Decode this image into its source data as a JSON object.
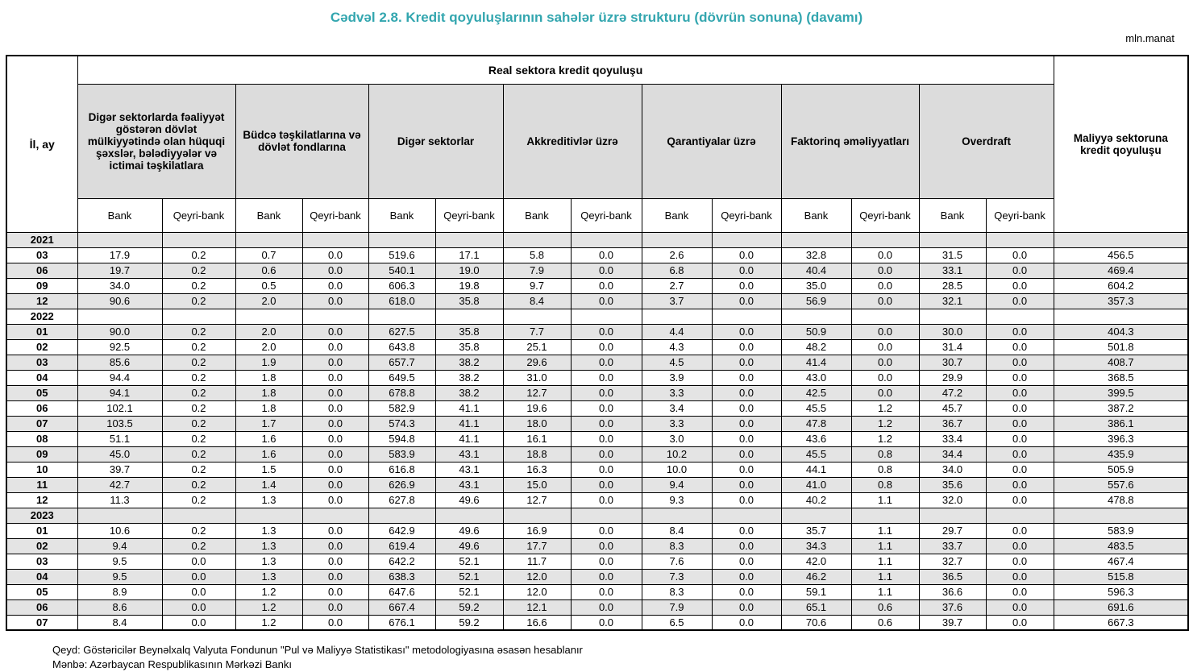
{
  "title": "Cədvəl 2.8. Kredit qoyuluşlarının sahələr üzrə strukturu (dövrün sonuna) (davamı)",
  "unit": "mln.manat",
  "colors": {
    "title_teal": "#33A6AF",
    "header_fill": "#DCDCDC",
    "stripe_fill": "#E4E4E4"
  },
  "table": {
    "il_ay_label": "İl, ay",
    "real_sector_label": "Real sektora kredit qoyuluşu",
    "financial_sector_label": "Maliyyə sektoruna kredit qoyuluşu",
    "bank_label": "Bank",
    "qeyri_bank_label": "Qeyri-bank",
    "groups": [
      {
        "label": "Digər sektorlarda fəaliyyət göstərən dövlət mülkiyyətində olan hüquqi şəxslər, bələdiyyələr və ictimai təşkilatlara"
      },
      {
        "label": "Büdcə təşkilatlarına və dövlət fondlarına"
      },
      {
        "label": "Digər sektorlar"
      },
      {
        "label": "Akkreditivlər üzrə"
      },
      {
        "label": "Qarantiyalar üzrə"
      },
      {
        "label": "Faktorinq əməliyyatları"
      },
      {
        "label": "Overdraft"
      }
    ],
    "sections": [
      {
        "year": "2021",
        "rows": [
          {
            "month": "03",
            "values": [
              "17.9",
              "0.2",
              "0.7",
              "0.0",
              "519.6",
              "17.1",
              "5.8",
              "0.0",
              "2.6",
              "0.0",
              "32.8",
              "0.0",
              "31.5",
              "0.0",
              "456.5"
            ]
          },
          {
            "month": "06",
            "values": [
              "19.7",
              "0.2",
              "0.6",
              "0.0",
              "540.1",
              "19.0",
              "7.9",
              "0.0",
              "6.8",
              "0.0",
              "40.4",
              "0.0",
              "33.1",
              "0.0",
              "469.4"
            ]
          },
          {
            "month": "09",
            "values": [
              "34.0",
              "0.2",
              "0.5",
              "0.0",
              "606.3",
              "19.8",
              "9.7",
              "0.0",
              "2.7",
              "0.0",
              "35.0",
              "0.0",
              "28.5",
              "0.0",
              "604.2"
            ]
          },
          {
            "month": "12",
            "values": [
              "90.6",
              "0.2",
              "2.0",
              "0.0",
              "618.0",
              "35.8",
              "8.4",
              "0.0",
              "3.7",
              "0.0",
              "56.9",
              "0.0",
              "32.1",
              "0.0",
              "357.3"
            ]
          }
        ]
      },
      {
        "year": "2022",
        "rows": [
          {
            "month": "01",
            "values": [
              "90.0",
              "0.2",
              "2.0",
              "0.0",
              "627.5",
              "35.8",
              "7.7",
              "0.0",
              "4.4",
              "0.0",
              "50.9",
              "0.0",
              "30.0",
              "0.0",
              "404.3"
            ]
          },
          {
            "month": "02",
            "values": [
              "92.5",
              "0.2",
              "2.0",
              "0.0",
              "643.8",
              "35.8",
              "25.1",
              "0.0",
              "4.3",
              "0.0",
              "48.2",
              "0.0",
              "31.4",
              "0.0",
              "501.8"
            ]
          },
          {
            "month": "03",
            "values": [
              "85.6",
              "0.2",
              "1.9",
              "0.0",
              "657.7",
              "38.2",
              "29.6",
              "0.0",
              "4.5",
              "0.0",
              "41.4",
              "0.0",
              "30.7",
              "0.0",
              "408.7"
            ]
          },
          {
            "month": "04",
            "values": [
              "94.4",
              "0.2",
              "1.8",
              "0.0",
              "649.5",
              "38.2",
              "31.0",
              "0.0",
              "3.9",
              "0.0",
              "43.0",
              "0.0",
              "29.9",
              "0.0",
              "368.5"
            ]
          },
          {
            "month": "05",
            "values": [
              "94.1",
              "0.2",
              "1.8",
              "0.0",
              "678.8",
              "38.2",
              "12.7",
              "0.0",
              "3.3",
              "0.0",
              "42.5",
              "0.0",
              "47.2",
              "0.0",
              "399.5"
            ]
          },
          {
            "month": "06",
            "values": [
              "102.1",
              "0.2",
              "1.8",
              "0.0",
              "582.9",
              "41.1",
              "19.6",
              "0.0",
              "3.4",
              "0.0",
              "45.5",
              "1.2",
              "45.7",
              "0.0",
              "387.2"
            ]
          },
          {
            "month": "07",
            "values": [
              "103.5",
              "0.2",
              "1.7",
              "0.0",
              "574.3",
              "41.1",
              "18.0",
              "0.0",
              "3.3",
              "0.0",
              "47.8",
              "1.2",
              "36.7",
              "0.0",
              "386.1"
            ]
          },
          {
            "month": "08",
            "values": [
              "51.1",
              "0.2",
              "1.6",
              "0.0",
              "594.8",
              "41.1",
              "16.1",
              "0.0",
              "3.0",
              "0.0",
              "43.6",
              "1.2",
              "33.4",
              "0.0",
              "396.3"
            ]
          },
          {
            "month": "09",
            "values": [
              "45.0",
              "0.2",
              "1.6",
              "0.0",
              "583.9",
              "43.1",
              "18.8",
              "0.0",
              "10.2",
              "0.0",
              "45.5",
              "0.8",
              "34.4",
              "0.0",
              "435.9"
            ]
          },
          {
            "month": "10",
            "values": [
              "39.7",
              "0.2",
              "1.5",
              "0.0",
              "616.8",
              "43.1",
              "16.3",
              "0.0",
              "10.0",
              "0.0",
              "44.1",
              "0.8",
              "34.0",
              "0.0",
              "505.9"
            ]
          },
          {
            "month": "11",
            "values": [
              "42.7",
              "0.2",
              "1.4",
              "0.0",
              "626.9",
              "43.1",
              "15.0",
              "0.0",
              "9.4",
              "0.0",
              "41.0",
              "0.8",
              "35.6",
              "0.0",
              "557.6"
            ]
          },
          {
            "month": "12",
            "values": [
              "11.3",
              "0.2",
              "1.3",
              "0.0",
              "627.8",
              "49.6",
              "12.7",
              "0.0",
              "9.3",
              "0.0",
              "40.2",
              "1.1",
              "32.0",
              "0.0",
              "478.8"
            ]
          }
        ]
      },
      {
        "year": "2023",
        "rows": [
          {
            "month": "01",
            "values": [
              "10.6",
              "0.2",
              "1.3",
              "0.0",
              "642.9",
              "49.6",
              "16.9",
              "0.0",
              "8.4",
              "0.0",
              "35.7",
              "1.1",
              "29.7",
              "0.0",
              "583.9"
            ]
          },
          {
            "month": "02",
            "values": [
              "9.4",
              "0.2",
              "1.3",
              "0.0",
              "619.4",
              "49.6",
              "17.7",
              "0.0",
              "8.3",
              "0.0",
              "34.3",
              "1.1",
              "33.7",
              "0.0",
              "483.5"
            ]
          },
          {
            "month": "03",
            "values": [
              "9.5",
              "0.0",
              "1.3",
              "0.0",
              "642.2",
              "52.1",
              "11.7",
              "0.0",
              "7.6",
              "0.0",
              "42.0",
              "1.1",
              "32.7",
              "0.0",
              "467.4"
            ]
          },
          {
            "month": "04",
            "values": [
              "9.5",
              "0.0",
              "1.3",
              "0.0",
              "638.3",
              "52.1",
              "12.0",
              "0.0",
              "7.3",
              "0.0",
              "46.2",
              "1.1",
              "36.5",
              "0.0",
              "515.8"
            ]
          },
          {
            "month": "05",
            "values": [
              "8.9",
              "0.0",
              "1.2",
              "0.0",
              "647.6",
              "52.1",
              "12.0",
              "0.0",
              "8.3",
              "0.0",
              "59.1",
              "1.1",
              "36.6",
              "0.0",
              "596.3"
            ]
          },
          {
            "month": "06",
            "values": [
              "8.6",
              "0.0",
              "1.2",
              "0.0",
              "667.4",
              "59.2",
              "12.1",
              "0.0",
              "7.9",
              "0.0",
              "65.1",
              "0.6",
              "37.6",
              "0.0",
              "691.6"
            ]
          },
          {
            "month": "07",
            "values": [
              "8.4",
              "0.0",
              "1.2",
              "0.0",
              "676.1",
              "59.2",
              "16.6",
              "0.0",
              "6.5",
              "0.0",
              "70.6",
              "0.6",
              "39.7",
              "0.0",
              "667.3"
            ]
          }
        ]
      }
    ]
  },
  "notes": [
    "Qeyd: Göstəricilər Beynəlxalq Valyuta Fondunun \"Pul və Maliyyə Statistikası\" metodologiyasına əsasən hesablanır",
    "Mənbə: Azərbaycan Respublikasının Mərkəzi Bankı"
  ]
}
